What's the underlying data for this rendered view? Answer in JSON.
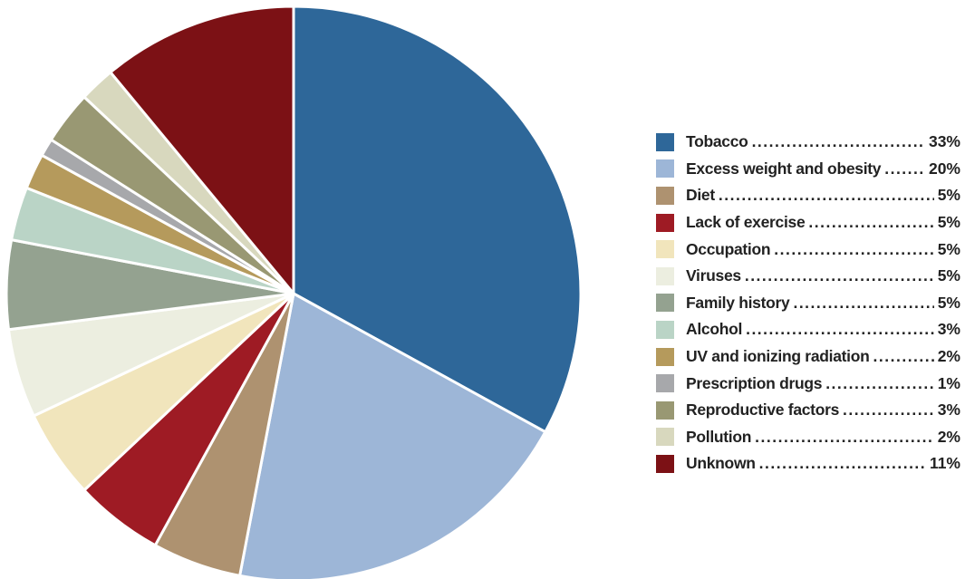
{
  "chart_data": {
    "type": "pie",
    "title": "",
    "legend_position": "right",
    "slices": [
      {
        "label": "Tobacco",
        "value": 33,
        "value_label": "33%",
        "color": "#2e6799"
      },
      {
        "label": "Excess weight and obesity",
        "value": 20,
        "value_label": "20%",
        "color": "#9db6d7"
      },
      {
        "label": "Diet",
        "value": 5,
        "value_label": "5%",
        "color": "#ae9270"
      },
      {
        "label": "Lack of exercise",
        "value": 5,
        "value_label": "5%",
        "color": "#9e1b24"
      },
      {
        "label": "Occupation",
        "value": 5,
        "value_label": "5%",
        "color": "#f1e5bc"
      },
      {
        "label": "Viruses",
        "value": 5,
        "value_label": "5%",
        "color": "#eceee0"
      },
      {
        "label": "Family history",
        "value": 5,
        "value_label": "5%",
        "color": "#94a290"
      },
      {
        "label": "Alcohol",
        "value": 3,
        "value_label": "3%",
        "color": "#bad4c6"
      },
      {
        "label": "UV and ionizing radiation",
        "value": 2,
        "value_label": "2%",
        "color": "#b59a5c"
      },
      {
        "label": "Prescription drugs",
        "value": 1,
        "value_label": "1%",
        "color": "#a7a8ab"
      },
      {
        "label": "Reproductive factors",
        "value": 3,
        "value_label": "3%",
        "color": "#999873"
      },
      {
        "label": "Pollution",
        "value": 2,
        "value_label": "2%",
        "color": "#d8d8be"
      },
      {
        "label": "Unknown",
        "value": 11,
        "value_label": "11%",
        "color": "#7c1115"
      }
    ]
  }
}
